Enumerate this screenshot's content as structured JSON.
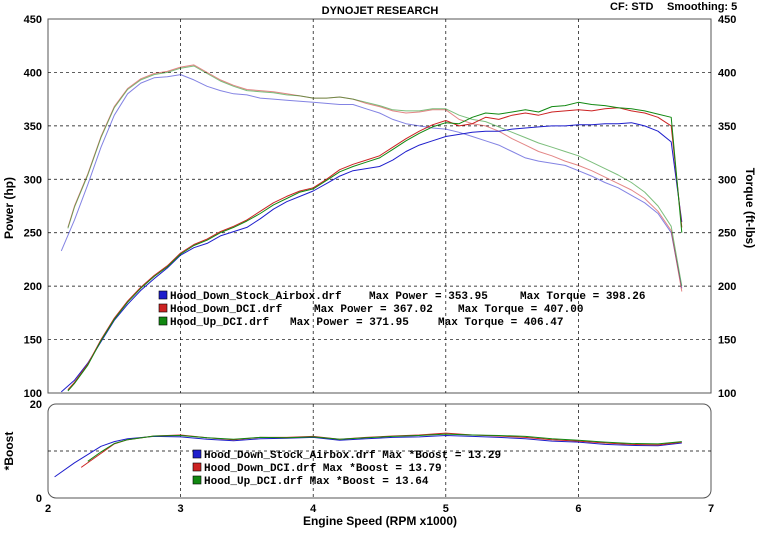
{
  "header": {
    "title": "DYNOJET RESEARCH",
    "correction": "CF: STD",
    "smoothing": "Smoothing: 5"
  },
  "colors": {
    "stock_airbox": "#1e1ecc",
    "hood_down_dci": "#cc2222",
    "hood_up_dci": "#118811"
  },
  "chart_data": [
    {
      "type": "line",
      "title": "",
      "xlabel": "Engine Speed (RPM x1000)",
      "ylabel": "Power (hp)",
      "ylabel_right": "Torque (ft-lbs)",
      "xlim": [
        2,
        7
      ],
      "ylim": [
        100,
        450
      ],
      "yticks": [
        "100",
        "150",
        "200",
        "250",
        "300",
        "350",
        "400",
        "450"
      ],
      "xticks": [
        "2",
        "3",
        "4",
        "5",
        "6",
        "7"
      ],
      "grid": true,
      "legend": {
        "placement": "center-left",
        "entries": [
          {
            "file": "Hood_Down_Stock_Airbox.drf",
            "max_power": "Max Power = 353.95",
            "max_torque": "Max Torque = 398.26"
          },
          {
            "file": "Hood_Down_DCI.drf",
            "max_power": "Max Power = 367.02",
            "max_torque": "Max Torque = 407.00"
          },
          {
            "file": "Hood_Up_DCI.drf",
            "max_power": "Max Power = 371.95",
            "max_torque": "Max Torque = 406.47"
          }
        ]
      },
      "series": [
        {
          "name": "Hood_Down_Stock_Airbox.drf",
          "quantity": "power",
          "x": [
            2.1,
            2.2,
            2.3,
            2.4,
            2.5,
            2.6,
            2.7,
            2.8,
            2.9,
            3.0,
            3.1,
            3.2,
            3.3,
            3.4,
            3.5,
            3.6,
            3.7,
            3.8,
            3.9,
            4.0,
            4.1,
            4.2,
            4.3,
            4.4,
            4.5,
            4.6,
            4.7,
            4.8,
            4.9,
            5.0,
            5.1,
            5.2,
            5.3,
            5.4,
            5.5,
            5.6,
            5.7,
            5.8,
            5.9,
            6.0,
            6.1,
            6.2,
            6.3,
            6.4,
            6.5,
            6.6,
            6.7,
            6.78
          ],
          "y": [
            101,
            112,
            128,
            148,
            168,
            183,
            196,
            207,
            217,
            229,
            236,
            240,
            247,
            251,
            255,
            263,
            272,
            279,
            284,
            289,
            296,
            303,
            308,
            310,
            312,
            318,
            326,
            332,
            336,
            340,
            342,
            344,
            345,
            345,
            347,
            348,
            349,
            350,
            350,
            351,
            351,
            352,
            352,
            353,
            350,
            345,
            335,
            260
          ]
        },
        {
          "name": "Hood_Down_DCI.drf",
          "quantity": "power",
          "x": [
            2.15,
            2.2,
            2.3,
            2.4,
            2.5,
            2.6,
            2.7,
            2.8,
            2.9,
            3.0,
            3.1,
            3.2,
            3.3,
            3.4,
            3.5,
            3.6,
            3.7,
            3.8,
            3.9,
            4.0,
            4.1,
            4.2,
            4.3,
            4.4,
            4.5,
            4.6,
            4.7,
            4.8,
            4.9,
            5.0,
            5.1,
            5.2,
            5.3,
            5.4,
            5.5,
            5.6,
            5.7,
            5.8,
            5.9,
            6.0,
            6.1,
            6.2,
            6.3,
            6.4,
            6.5,
            6.6,
            6.7,
            6.78
          ],
          "y": [
            103,
            110,
            127,
            150,
            170,
            186,
            199,
            210,
            219,
            231,
            239,
            244,
            251,
            256,
            262,
            270,
            278,
            284,
            289,
            292,
            300,
            309,
            314,
            318,
            322,
            330,
            338,
            345,
            351,
            355,
            350,
            352,
            358,
            356,
            360,
            362,
            360,
            363,
            364,
            365,
            364,
            366,
            367,
            364,
            362,
            358,
            350,
            255
          ]
        },
        {
          "name": "Hood_Up_DCI.drf",
          "quantity": "power",
          "x": [
            2.15,
            2.2,
            2.3,
            2.4,
            2.5,
            2.6,
            2.7,
            2.8,
            2.9,
            3.0,
            3.1,
            3.2,
            3.3,
            3.4,
            3.5,
            3.6,
            3.7,
            3.8,
            3.9,
            4.0,
            4.1,
            4.2,
            4.3,
            4.4,
            4.5,
            4.6,
            4.7,
            4.8,
            4.9,
            5.0,
            5.1,
            5.2,
            5.3,
            5.4,
            5.5,
            5.6,
            5.7,
            5.8,
            5.9,
            6.0,
            6.1,
            6.2,
            6.3,
            6.4,
            6.5,
            6.6,
            6.7,
            6.78
          ],
          "y": [
            102,
            109,
            126,
            149,
            169,
            185,
            198,
            209,
            218,
            230,
            238,
            243,
            250,
            255,
            261,
            268,
            276,
            282,
            288,
            291,
            299,
            307,
            312,
            316,
            320,
            328,
            336,
            343,
            349,
            353,
            352,
            358,
            362,
            361,
            363,
            365,
            363,
            368,
            369,
            372,
            370,
            369,
            367,
            366,
            364,
            361,
            358,
            250
          ]
        },
        {
          "name": "Hood_Down_Stock_Airbox.drf",
          "quantity": "torque",
          "x": [
            2.1,
            2.2,
            2.3,
            2.4,
            2.5,
            2.6,
            2.7,
            2.8,
            2.9,
            3.0,
            3.1,
            3.2,
            3.3,
            3.4,
            3.5,
            3.6,
            3.7,
            3.8,
            3.9,
            4.0,
            4.1,
            4.2,
            4.3,
            4.4,
            4.5,
            4.6,
            4.7,
            4.8,
            4.9,
            5.0,
            5.1,
            5.2,
            5.3,
            5.4,
            5.5,
            5.6,
            5.7,
            5.8,
            5.9,
            6.0,
            6.1,
            6.2,
            6.3,
            6.4,
            6.5,
            6.6,
            6.7,
            6.78
          ],
          "y": [
            233,
            262,
            295,
            330,
            360,
            380,
            390,
            395,
            396,
            398,
            393,
            387,
            383,
            380,
            379,
            376,
            375,
            374,
            373,
            372,
            371,
            370,
            370,
            366,
            362,
            356,
            352,
            350,
            348,
            347,
            344,
            340,
            336,
            332,
            326,
            320,
            317,
            315,
            313,
            308,
            303,
            297,
            292,
            285,
            278,
            268,
            250,
            198
          ]
        },
        {
          "name": "Hood_Down_DCI.drf",
          "quantity": "torque",
          "x": [
            2.15,
            2.2,
            2.3,
            2.4,
            2.5,
            2.6,
            2.7,
            2.8,
            2.9,
            3.0,
            3.1,
            3.2,
            3.3,
            3.4,
            3.5,
            3.6,
            3.7,
            3.8,
            3.9,
            4.0,
            4.1,
            4.2,
            4.3,
            4.4,
            4.5,
            4.6,
            4.7,
            4.8,
            4.9,
            5.0,
            5.1,
            5.2,
            5.3,
            5.4,
            5.5,
            5.6,
            5.7,
            5.8,
            5.9,
            6.0,
            6.1,
            6.2,
            6.3,
            6.4,
            6.5,
            6.6,
            6.7,
            6.78
          ],
          "y": [
            255,
            275,
            305,
            340,
            368,
            385,
            394,
            399,
            401,
            405,
            407,
            400,
            393,
            388,
            384,
            383,
            382,
            380,
            378,
            376,
            376,
            377,
            375,
            371,
            368,
            364,
            362,
            363,
            365,
            365,
            356,
            352,
            350,
            345,
            338,
            332,
            326,
            322,
            317,
            313,
            308,
            302,
            296,
            290,
            282,
            270,
            252,
            195
          ]
        },
        {
          "name": "Hood_Up_DCI.drf",
          "quantity": "torque",
          "x": [
            2.15,
            2.2,
            2.3,
            2.4,
            2.5,
            2.6,
            2.7,
            2.8,
            2.9,
            3.0,
            3.1,
            3.2,
            3.3,
            3.4,
            3.5,
            3.6,
            3.7,
            3.8,
            3.9,
            4.0,
            4.1,
            4.2,
            4.3,
            4.4,
            4.5,
            4.6,
            4.7,
            4.8,
            4.9,
            5.0,
            5.1,
            5.2,
            5.3,
            5.4,
            5.5,
            5.6,
            5.7,
            5.8,
            5.9,
            6.0,
            6.1,
            6.2,
            6.3,
            6.4,
            6.5,
            6.6,
            6.7,
            6.78
          ],
          "y": [
            254,
            274,
            304,
            339,
            367,
            384,
            393,
            398,
            400,
            404,
            406,
            399,
            392,
            387,
            383,
            382,
            381,
            379,
            378,
            376,
            376,
            377,
            375,
            372,
            369,
            365,
            364,
            364,
            366,
            366,
            360,
            356,
            354,
            349,
            344,
            339,
            334,
            330,
            326,
            322,
            316,
            310,
            304,
            297,
            288,
            275,
            256,
            200
          ]
        }
      ]
    },
    {
      "type": "line",
      "title": "",
      "xlabel": "Engine Speed (RPM x1000)",
      "ylabel": "*Boost",
      "xlim": [
        2,
        7
      ],
      "ylim": [
        0,
        20
      ],
      "yticks": [
        "0",
        "20"
      ],
      "grid": true,
      "legend": {
        "placement": "center",
        "entries": [
          {
            "text": "Hood_Down_Stock_Airbox.drf Max *Boost = 13.29"
          },
          {
            "text": "Hood_Down_DCI.drf Max *Boost = 13.79"
          },
          {
            "text": "Hood_Up_DCI.drf Max *Boost = 13.64"
          }
        ]
      },
      "series": [
        {
          "name": "Hood_Down_Stock_Airbox.drf",
          "x": [
            2.05,
            2.2,
            2.4,
            2.5,
            2.6,
            2.8,
            3.0,
            3.2,
            3.4,
            3.6,
            3.8,
            4.0,
            4.2,
            4.4,
            4.6,
            4.8,
            5.0,
            5.2,
            5.4,
            5.6,
            5.8,
            6.0,
            6.2,
            6.4,
            6.6,
            6.78
          ],
          "y": [
            4.5,
            7.5,
            11.0,
            12.0,
            12.6,
            13.1,
            13.0,
            12.5,
            12.2,
            12.6,
            12.7,
            12.9,
            12.3,
            12.6,
            12.9,
            13.0,
            13.3,
            13.1,
            12.9,
            12.6,
            12.1,
            11.9,
            11.4,
            11.2,
            11.1,
            11.7
          ]
        },
        {
          "name": "Hood_Down_DCI.drf",
          "x": [
            2.25,
            2.4,
            2.5,
            2.6,
            2.8,
            3.0,
            3.2,
            3.4,
            3.6,
            3.8,
            4.0,
            4.2,
            4.4,
            4.6,
            4.8,
            5.0,
            5.2,
            5.4,
            5.6,
            5.8,
            6.0,
            6.2,
            6.4,
            6.6,
            6.78
          ],
          "y": [
            6.5,
            9.5,
            11.5,
            12.4,
            13.2,
            13.4,
            12.8,
            12.4,
            12.9,
            12.9,
            13.1,
            12.5,
            12.9,
            13.2,
            13.4,
            13.8,
            13.4,
            13.2,
            12.9,
            12.4,
            12.1,
            11.7,
            11.4,
            11.3,
            11.9
          ]
        },
        {
          "name": "Hood_Up_DCI.drf",
          "x": [
            2.3,
            2.4,
            2.5,
            2.6,
            2.8,
            3.0,
            3.2,
            3.4,
            3.6,
            3.8,
            4.0,
            4.2,
            4.4,
            4.6,
            4.8,
            5.0,
            5.2,
            5.4,
            5.6,
            5.8,
            6.0,
            6.2,
            6.4,
            6.6,
            6.78
          ],
          "y": [
            7.8,
            9.8,
            11.6,
            12.4,
            13.2,
            13.3,
            12.8,
            12.5,
            12.9,
            12.8,
            13.0,
            12.5,
            12.8,
            13.1,
            13.3,
            13.6,
            13.4,
            13.3,
            13.1,
            12.6,
            12.3,
            11.9,
            11.6,
            11.5,
            12.0
          ]
        }
      ]
    }
  ]
}
